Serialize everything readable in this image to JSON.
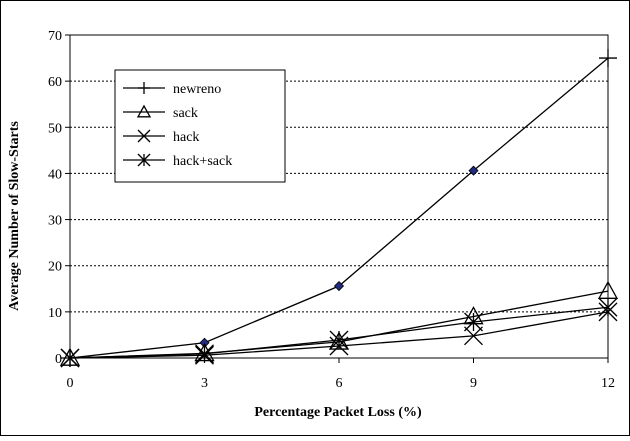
{
  "chart_data": {
    "type": "line",
    "title": "",
    "xlabel": "Percentage Packet Loss (%)",
    "ylabel": "Average Number of Slow-Starts",
    "x": [
      0,
      3,
      6,
      9,
      12
    ],
    "xticks": [
      "0",
      "3",
      "6",
      "9",
      "12"
    ],
    "yticks": [
      "0",
      "10",
      "20",
      "30",
      "40",
      "50",
      "60",
      "70"
    ],
    "xlim": [
      0,
      12
    ],
    "ylim": [
      0,
      70
    ],
    "grid": "horizontal dotted",
    "legend_position": "upper-left",
    "series": [
      {
        "name": "newreno",
        "marker": "plus",
        "values": [
          0,
          3.3,
          15.6,
          40.6,
          65.0
        ]
      },
      {
        "name": "sack",
        "marker": "triangle",
        "values": [
          0,
          1.0,
          3.5,
          9.0,
          14.5
        ]
      },
      {
        "name": "hack",
        "marker": "x",
        "values": [
          0,
          0.6,
          2.6,
          4.8,
          10.0
        ]
      },
      {
        "name": "hack+sack",
        "marker": "asterisk",
        "values": [
          0,
          0.9,
          3.9,
          7.8,
          11.0
        ]
      }
    ]
  }
}
